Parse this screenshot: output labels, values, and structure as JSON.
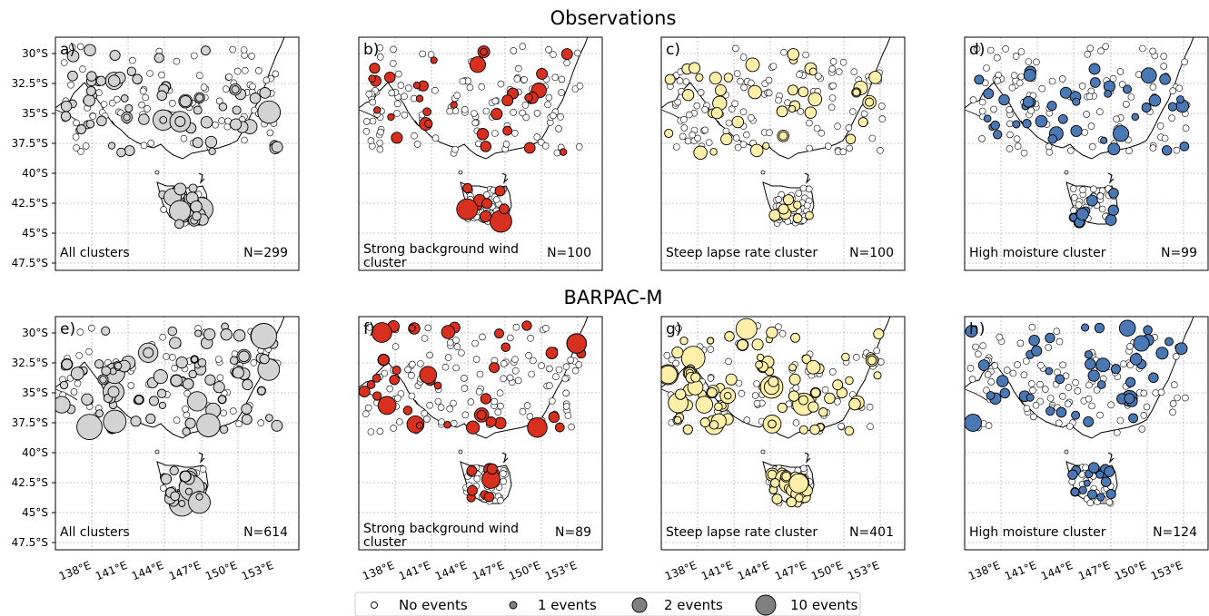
{
  "row_titles": [
    "Observations",
    "BARPAC-M"
  ],
  "y_ticks": [
    "30°S",
    "32.5°S",
    "35°S",
    "37.5°S",
    "40°S",
    "42.5°S",
    "45°S",
    "47.5°S"
  ],
  "x_ticks": [
    "138°E",
    "141°E",
    "144°E",
    "147°E",
    "150°E",
    "153°E"
  ],
  "panels": [
    {
      "letter": "a)",
      "label": [
        "All clusters"
      ],
      "n": "N=299",
      "color": "#d3d3d3",
      "seed": 11,
      "density": 0.55,
      "maxr": 13
    },
    {
      "letter": "b)",
      "label": [
        "Strong background wind",
        "cluster"
      ],
      "n": "N=100",
      "color": "#d7301f",
      "seed": 23,
      "density": 0.22,
      "maxr": 12
    },
    {
      "letter": "c)",
      "label": [
        "Steep lapse rate cluster"
      ],
      "n": "N=100",
      "color": "#ffefa8",
      "seed": 37,
      "density": 0.28,
      "maxr": 8
    },
    {
      "letter": "d)",
      "label": [
        "High moisture cluster"
      ],
      "n": "N=99",
      "color": "#4a78b4",
      "seed": 41,
      "density": 0.3,
      "maxr": 9
    },
    {
      "letter": "e)",
      "label": [
        "All clusters"
      ],
      "n": "N=614",
      "color": "#d3d3d3",
      "seed": 53,
      "density": 0.85,
      "maxr": 14
    },
    {
      "letter": "f)",
      "label": [
        "Strong background wind",
        "cluster"
      ],
      "n": "N=89",
      "color": "#d7301f",
      "seed": 67,
      "density": 0.3,
      "maxr": 11
    },
    {
      "letter": "g)",
      "label": [
        "Steep lapse rate cluster"
      ],
      "n": "N=401",
      "color": "#ffefa8",
      "seed": 71,
      "density": 0.75,
      "maxr": 13
    },
    {
      "letter": "h)",
      "label": [
        "High moisture cluster"
      ],
      "n": "N=124",
      "color": "#4a78b4",
      "seed": 83,
      "density": 0.35,
      "maxr": 10
    }
  ],
  "legend": [
    {
      "label": "No events",
      "fill": "#ffffff"
    },
    {
      "label": "1 events",
      "fill": "#808080"
    },
    {
      "label": "2 events",
      "fill": "#808080"
    },
    {
      "label": "10 events",
      "fill": "#808080"
    }
  ]
}
